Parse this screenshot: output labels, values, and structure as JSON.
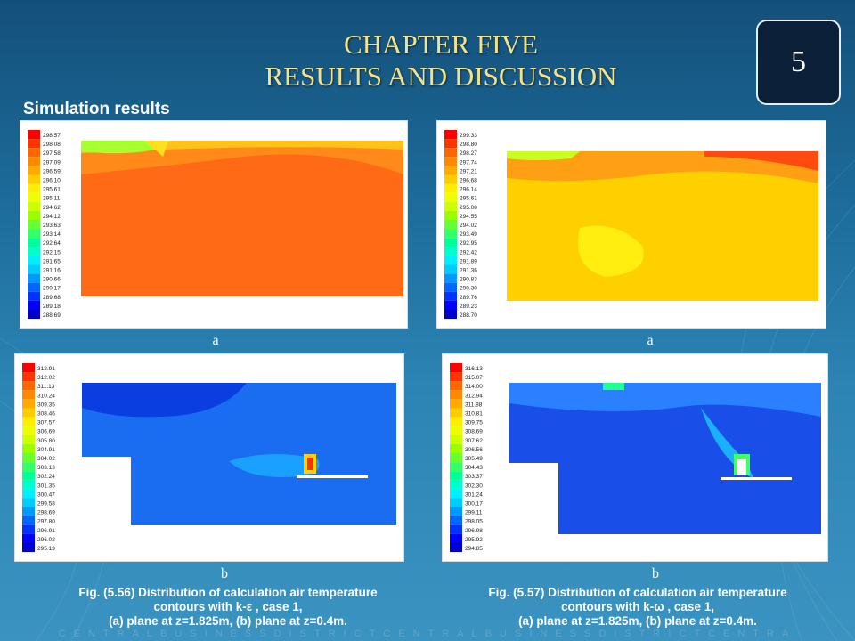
{
  "header": {
    "line1": "CHAPTER  FIVE",
    "line2": "RESULTS  AND  DISCUSSION",
    "chapter_number": "5"
  },
  "section_title": "Simulation results",
  "figures": {
    "fig_556": {
      "label_a": "a",
      "label_b": "b",
      "caption_line1": "Fig. (5.56) Distribution of calculation air temperature",
      "caption_line2": "contours with k-ε , case 1,",
      "caption_line3": "(a) plane at z=1.825m, (b) plane at z=0.4m.",
      "a_legend": [
        "298.57",
        "298.08",
        "297.58",
        "297.09",
        "296.59",
        "296.10",
        "295.61",
        "295.11",
        "294.62",
        "294.12",
        "293.63",
        "293.14",
        "292.64",
        "292.15",
        "291.65",
        "291.16",
        "290.66",
        "290.17",
        "289.68",
        "289.18",
        "288.69"
      ],
      "b_legend": [
        "312.91",
        "312.02",
        "311.13",
        "310.24",
        "309.35",
        "308.46",
        "307.57",
        "306.69",
        "305.80",
        "304.91",
        "304.02",
        "303.13",
        "302.24",
        "301.35",
        "300.47",
        "299.58",
        "298.69",
        "297.80",
        "296.91",
        "296.02",
        "295.13"
      ]
    },
    "fig_557": {
      "label_a": "a",
      "label_b": "b",
      "caption_line1": "Fig. (5.57) Distribution of calculation air temperature",
      "caption_line2": "contours with k-ω , case 1,",
      "caption_line3": "(a) plane at z=1.825m, (b) plane at z=0.4m.",
      "a_legend": [
        "299.33",
        "298.80",
        "298.27",
        "297.74",
        "297.21",
        "296.68",
        "296.14",
        "295.61",
        "295.08",
        "294.55",
        "294.02",
        "293.49",
        "292.95",
        "292.42",
        "291.89",
        "291.36",
        "290.83",
        "290.30",
        "289.76",
        "289.23",
        "288.70"
      ],
      "b_legend": [
        "316.13",
        "315.07",
        "314.00",
        "312.94",
        "311.88",
        "310.81",
        "309.75",
        "308.69",
        "307.62",
        "306.56",
        "305.49",
        "304.43",
        "303.37",
        "302.30",
        "301.24",
        "300.17",
        "299.11",
        "298.05",
        "296.98",
        "295.92",
        "294.85"
      ]
    }
  },
  "legend_colors": [
    "#ff0000",
    "#ff3300",
    "#ff6600",
    "#ff8800",
    "#ffaa00",
    "#ffcc00",
    "#ffee00",
    "#eeff00",
    "#ccff00",
    "#99ff00",
    "#66ff33",
    "#33ff66",
    "#00ff99",
    "#00ffcc",
    "#00eeff",
    "#00ccff",
    "#0099ff",
    "#0066ff",
    "#0033ff",
    "#0000ff",
    "#0000cc"
  ],
  "footer": "CENTRALBUSINESSDISTRICTCENTRALBUSINESSDISTRICTCENTRA"
}
